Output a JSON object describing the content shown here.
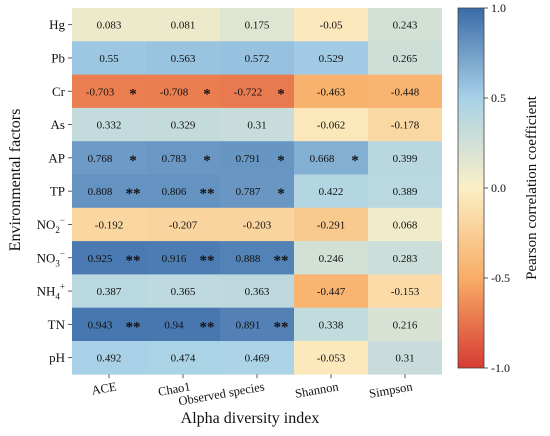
{
  "chart_data": {
    "type": "heatmap",
    "xlabel": "Alpha diversity index",
    "ylabel": "Environmental factors",
    "colorbar_label": "Pearson correlation coefficient",
    "colorbar_range": [
      -1.0,
      1.0
    ],
    "colorbar_ticks": [
      "1.0",
      "0.5",
      "0.0",
      "-0.5",
      "-1.0"
    ],
    "colorbar_tick_values": [
      1.0,
      0.5,
      0.0,
      -0.5,
      -1.0
    ],
    "colormap": [
      "#d73b33",
      "#f8ad66",
      "#fbefc5",
      "#a7d1e8",
      "#3b6ba8"
    ],
    "columns": [
      "ACE",
      "Chao1",
      "Observed species",
      "Shannon",
      "Simpson"
    ],
    "rows": [
      {
        "label": "Hg",
        "base": "Hg",
        "sup": ""
      },
      {
        "label": "Pb",
        "base": "Pb",
        "sup": ""
      },
      {
        "label": "Cr",
        "base": "Cr",
        "sup": ""
      },
      {
        "label": "As",
        "base": "As",
        "sup": ""
      },
      {
        "label": "AP",
        "base": "AP",
        "sup": ""
      },
      {
        "label": "TP",
        "base": "TP",
        "sup": ""
      },
      {
        "label": "NO2⁻",
        "base": "NO",
        "sub": "2",
        "sup": "−"
      },
      {
        "label": "NO3⁻",
        "base": "NO",
        "sub": "3",
        "sup": "−"
      },
      {
        "label": "NH4⁺",
        "base": "NH",
        "sub": "4",
        "sup": "+"
      },
      {
        "label": "TN",
        "base": "TN",
        "sup": ""
      },
      {
        "label": "pH",
        "base": "pH",
        "sup": ""
      }
    ],
    "values": [
      [
        "0.083",
        "0.081",
        "0.175",
        "-0.05",
        "0.243"
      ],
      [
        "0.55",
        "0.563",
        "0.572",
        "0.529",
        "0.265"
      ],
      [
        "-0.703",
        "-0.708",
        "-0.722",
        "-0.463",
        "-0.448"
      ],
      [
        "0.332",
        "0.329",
        "0.31",
        "-0.062",
        "-0.178"
      ],
      [
        "0.768",
        "0.783",
        "0.791",
        "0.668",
        "0.399"
      ],
      [
        "0.808",
        "0.806",
        "0.787",
        "0.422",
        "0.389"
      ],
      [
        "-0.192",
        "-0.207",
        "-0.203",
        "-0.291",
        "0.068"
      ],
      [
        "0.925",
        "0.916",
        "0.888",
        "0.246",
        "0.283"
      ],
      [
        "0.387",
        "0.365",
        "0.363",
        "-0.447",
        "-0.153"
      ],
      [
        "0.943",
        "0.94",
        "0.891",
        "0.338",
        "0.216"
      ],
      [
        "0.492",
        "0.474",
        "0.469",
        "-0.053",
        "0.31"
      ]
    ],
    "significance": [
      [
        "",
        "",
        "",
        "",
        ""
      ],
      [
        "",
        "",
        "",
        "",
        ""
      ],
      [
        "*",
        "*",
        "*",
        "",
        ""
      ],
      [
        "",
        "",
        "",
        "",
        ""
      ],
      [
        "*",
        "*",
        "*",
        "*",
        ""
      ],
      [
        "**",
        "**",
        "*",
        "",
        ""
      ],
      [
        "",
        "",
        "",
        "",
        ""
      ],
      [
        "**",
        "**",
        "**",
        "",
        ""
      ],
      [
        "",
        "",
        "",
        "",
        ""
      ],
      [
        "**",
        "**",
        "**",
        "",
        ""
      ],
      [
        "",
        "",
        "",
        "",
        ""
      ]
    ]
  }
}
